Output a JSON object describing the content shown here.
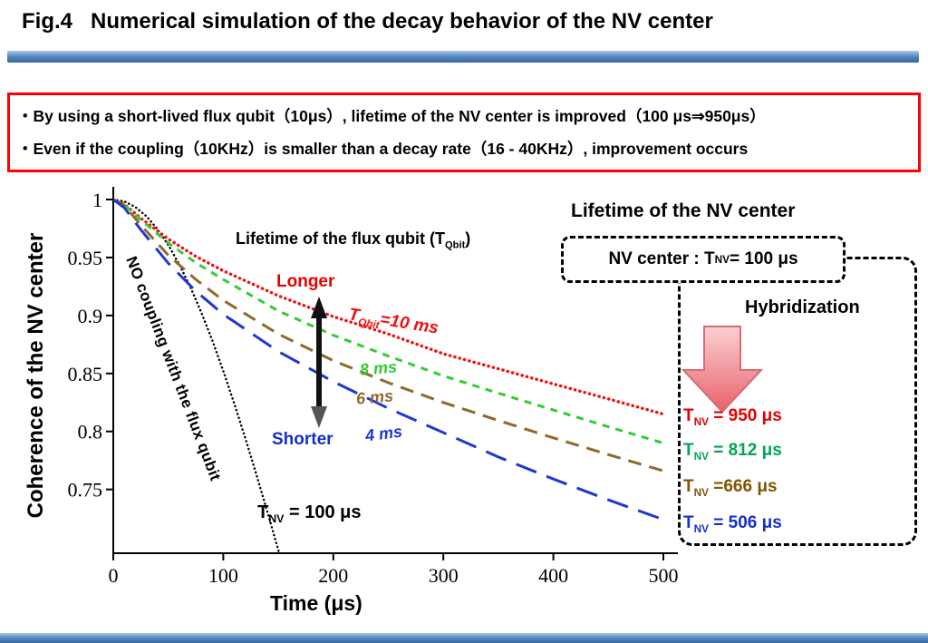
{
  "slide": {
    "title": "Fig.4   Numerical simulation of the decay behavior of the NV center",
    "bullets": [
      "・By using a short-lived flux qubit（10μs）, lifetime of the NV center is improved（100 μs⇒950μs）",
      "・Even if the coupling（10KHz）is smaller than a decay rate（16 - 40KHz）, improvement occurs"
    ],
    "accent_bar_color": "#4f81bd",
    "bullet_box_border_color": "#ff0000"
  },
  "chart_data": {
    "type": "line",
    "title": "",
    "xlabel": "Time (μs)",
    "ylabel": "Coherence of the NV center",
    "xlim": [
      0,
      500
    ],
    "ylim": [
      0.695,
      1.0
    ],
    "xtick_values": [
      0,
      100,
      200,
      300,
      400,
      500
    ],
    "xtick_labels": [
      "0",
      "100",
      "200",
      "300",
      "400",
      "500"
    ],
    "ytick_values": [
      1,
      0.95,
      0.9,
      0.85,
      0.8,
      0.75
    ],
    "ytick_labels": [
      "1",
      "0.95",
      "0.9",
      "0.85",
      "0.8",
      "0.75"
    ],
    "grid": false,
    "legend_position": "none",
    "series": [
      {
        "id": "no-coupling",
        "name": "NO coupling with the flux qubit",
        "color": "#000000",
        "dash": "0.3 4.2",
        "width": 2.4,
        "linecap": "round",
        "x": [
          0,
          10,
          20,
          30,
          40,
          50,
          60,
          70,
          80,
          90,
          100,
          110,
          120,
          130,
          140,
          150,
          158
        ],
        "y": [
          1.0,
          0.9984,
          0.9936,
          0.9857,
          0.9747,
          0.9608,
          0.944,
          0.9246,
          0.9027,
          0.8785,
          0.8521,
          0.824,
          0.7942,
          0.7631,
          0.7308,
          0.6977,
          0.6707
        ]
      },
      {
        "id": "tqbit-10ms",
        "name": "T_Qbit = 10 ms",
        "color": "#ee1111",
        "dash": "0.3 5.2",
        "width": 3.4,
        "linecap": "round",
        "x": [
          0,
          10,
          25,
          50,
          75,
          100,
          150,
          200,
          250,
          300,
          350,
          400,
          450,
          500
        ],
        "y": [
          1.0,
          0.996,
          0.984,
          0.966,
          0.951,
          0.9385,
          0.917,
          0.899,
          0.884,
          0.867,
          0.854,
          0.841,
          0.828,
          0.815
        ]
      },
      {
        "id": "tqbit-8ms",
        "name": "T_Qbit = 8 ms",
        "color": "#33cc33",
        "dash": "8 7",
        "width": 3,
        "linecap": "butt",
        "x": [
          0,
          10,
          25,
          50,
          75,
          100,
          150,
          200,
          250,
          300,
          350,
          400,
          450,
          500
        ],
        "y": [
          1.0,
          0.9955,
          0.9825,
          0.9625,
          0.9455,
          0.931,
          0.904,
          0.883,
          0.865,
          0.848,
          0.833,
          0.8185,
          0.804,
          0.79
        ]
      },
      {
        "id": "tqbit-6ms",
        "name": "T_Qbit = 6 ms",
        "color": "#8f6a2a",
        "dash": "15 9",
        "width": 3,
        "linecap": "butt",
        "x": [
          0,
          10,
          25,
          50,
          75,
          100,
          150,
          200,
          250,
          300,
          350,
          400,
          450,
          500
        ],
        "y": [
          1.0,
          0.995,
          0.978,
          0.952,
          0.931,
          0.913,
          0.884,
          0.861,
          0.842,
          0.825,
          0.8095,
          0.7945,
          0.78,
          0.766
        ]
      },
      {
        "id": "tqbit-4ms",
        "name": "T_Qbit = 4 ms",
        "color": "#2038d0",
        "dash": "24 12",
        "width": 3,
        "linecap": "butt",
        "x": [
          0,
          10,
          25,
          50,
          75,
          100,
          150,
          200,
          250,
          300,
          350,
          400,
          450,
          500
        ],
        "y": [
          1.0,
          0.993,
          0.974,
          0.945,
          0.921,
          0.901,
          0.869,
          0.843,
          0.82,
          0.799,
          0.778,
          0.759,
          0.741,
          0.724
        ]
      }
    ]
  },
  "annotations": {
    "flux_qubit_heading": {
      "pre": "Lifetime of the flux qubit (T",
      "sub": "Qbit",
      "post": ")"
    },
    "longer": {
      "text": "Longer",
      "color": "#e60000"
    },
    "shorter": {
      "text": "Shorter",
      "color": "#1430c8"
    },
    "curve_label_10ms": {
      "pre": "T",
      "sub": "Qbit",
      "post": "=10 ms",
      "color": "#ee1111"
    },
    "curve_label_8ms": {
      "text": "8 ms",
      "color": "#33cc33"
    },
    "curve_label_6ms": {
      "text": "6 ms",
      "color": "#8f6a2a"
    },
    "curve_label_4ms": {
      "text": "4 ms",
      "color": "#2038d0"
    },
    "no_coupling": {
      "text": "NO coupling with the flux qubit",
      "color": "#000000"
    },
    "tnv_100": {
      "pre": "T",
      "sub": "NV",
      "post": " = 100 μs"
    }
  },
  "right_panel": {
    "title": "Lifetime of the NV center",
    "nv_center_box": {
      "pre": "NV center : T",
      "sub": "NV",
      "post": " = 100 μs"
    },
    "hybridization_label": "Hybridization",
    "hybridization_arrow_colors": {
      "top": "#fbd0d4",
      "bottom": "#e8616b"
    },
    "results": [
      {
        "pre": "T",
        "sub": "NV",
        "post": " = 950 μs",
        "color": "#e60000"
      },
      {
        "pre": "T",
        "sub": "NV",
        "post": " = 812 μs",
        "color": "#00a650"
      },
      {
        "pre": "T",
        "sub": "NV",
        "post": " =666 μs",
        "color": "#7f5500"
      },
      {
        "pre": "T",
        "sub": "NV",
        "post": " = 506 μs",
        "color": "#1430c8"
      }
    ]
  }
}
